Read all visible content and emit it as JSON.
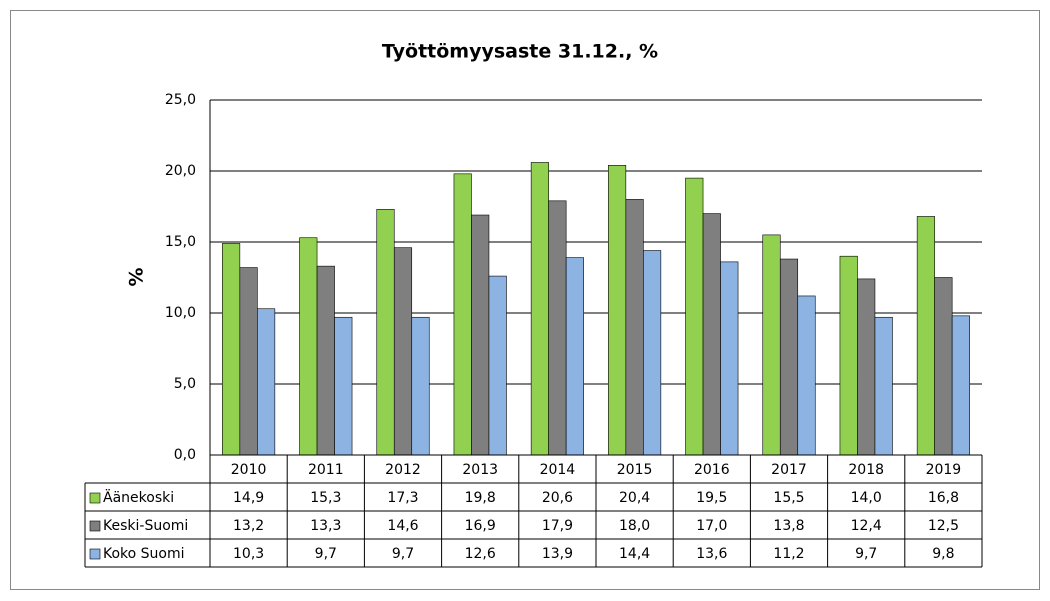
{
  "chart_data": {
    "type": "bar",
    "title": "Työttömyysaste 31.12., %",
    "y_label": "%",
    "categories": [
      "2010",
      "2011",
      "2012",
      "2013",
      "2014",
      "2015",
      "2016",
      "2017",
      "2018",
      "2019"
    ],
    "series": [
      {
        "name": "Äänekoski",
        "color": "#92d050",
        "values": [
          14.9,
          15.3,
          17.3,
          19.8,
          20.6,
          20.4,
          19.5,
          15.5,
          14.0,
          16.8
        ],
        "value_labels": [
          "14,9",
          "15,3",
          "17,3",
          "19,8",
          "20,6",
          "20,4",
          "19,5",
          "15,5",
          "14,0",
          "16,8"
        ]
      },
      {
        "name": "Keski-Suomi",
        "color": "#7f7f7f",
        "values": [
          13.2,
          13.3,
          14.6,
          16.9,
          17.9,
          18.0,
          17.0,
          13.8,
          12.4,
          12.5
        ],
        "value_labels": [
          "13,2",
          "13,3",
          "14,6",
          "16,9",
          "17,9",
          "18,0",
          "17,0",
          "13,8",
          "12,4",
          "12,5"
        ]
      },
      {
        "name": "Koko Suomi",
        "color": "#8db3e2",
        "values": [
          10.3,
          9.7,
          9.7,
          12.6,
          13.9,
          14.4,
          13.6,
          11.2,
          9.7,
          9.8
        ],
        "value_labels": [
          "10,3",
          "9,7",
          "9,7",
          "12,6",
          "13,9",
          "14,4",
          "13,6",
          "11,2",
          "9,7",
          "9,8"
        ]
      }
    ],
    "ylim": [
      0,
      25
    ],
    "yticks": [
      {
        "value": 0,
        "label": "0,0"
      },
      {
        "value": 5,
        "label": "5,0"
      },
      {
        "value": 10,
        "label": "10,0"
      },
      {
        "value": 15,
        "label": "15,0"
      },
      {
        "value": 20,
        "label": "20,0"
      },
      {
        "value": 25,
        "label": "25,0"
      }
    ],
    "grid": true
  }
}
